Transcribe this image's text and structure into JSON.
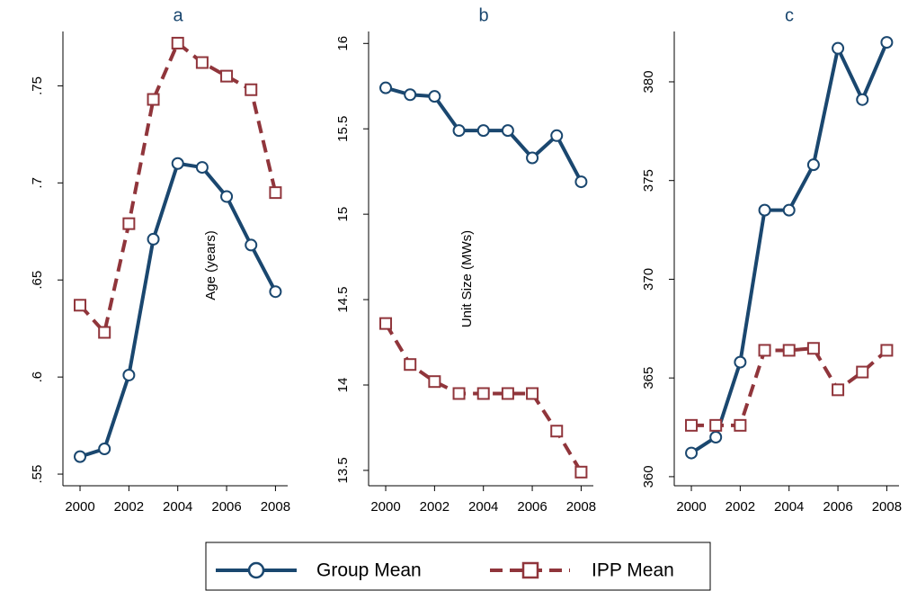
{
  "chart_data": [
    {
      "type": "line",
      "title": "a",
      "ylabel": "Age (years)",
      "x": [
        2000,
        2001,
        2002,
        2003,
        2004,
        2005,
        2006,
        2007,
        2008
      ],
      "xlim": [
        1999.3,
        2008.5
      ],
      "xticks": [
        2000,
        2002,
        2004,
        2006,
        2008
      ],
      "ylim": [
        0.544,
        0.778
      ],
      "yticks": [
        {
          "value": 0.55,
          "label": ".55"
        },
        {
          "value": 0.6,
          "label": ".6"
        },
        {
          "value": 0.65,
          "label": ".65"
        },
        {
          "value": 0.7,
          "label": ".7"
        },
        {
          "value": 0.75,
          "label": ".75"
        }
      ],
      "series": [
        {
          "name": "Group Mean",
          "color": "#1a476f",
          "values": [
            0.559,
            0.563,
            0.601,
            0.671,
            0.71,
            0.708,
            0.693,
            0.668,
            0.644
          ]
        },
        {
          "name": "IPP Mean",
          "color": "#90353b",
          "values": [
            0.637,
            0.623,
            0.679,
            0.743,
            0.772,
            0.762,
            0.755,
            0.748,
            0.695
          ]
        }
      ]
    },
    {
      "type": "line",
      "title": "b",
      "ylabel": "Unit Size (MWs)",
      "x": [
        2000,
        2001,
        2002,
        2003,
        2004,
        2005,
        2006,
        2007,
        2008
      ],
      "xlim": [
        1999.3,
        2008.5
      ],
      "xticks": [
        2000,
        2002,
        2004,
        2006,
        2008
      ],
      "ylim": [
        13.41,
        16.07
      ],
      "yticks": [
        13.5,
        14,
        14.5,
        15,
        15.5,
        16
      ],
      "series": [
        {
          "name": "Group Mean",
          "color": "#1a476f",
          "values": [
            15.74,
            15.7,
            15.69,
            15.49,
            15.49,
            15.49,
            15.33,
            15.46,
            15.19
          ]
        },
        {
          "name": "IPP Mean",
          "color": "#90353b",
          "values": [
            14.36,
            14.12,
            14.02,
            13.95,
            13.95,
            13.95,
            13.95,
            13.73,
            13.49
          ]
        }
      ]
    },
    {
      "type": "line",
      "title": "c",
      "x": [
        2000,
        2001,
        2002,
        2003,
        2004,
        2005,
        2006,
        2007,
        2008
      ],
      "xlim": [
        1999.3,
        2008.5
      ],
      "xticks": [
        2000,
        2002,
        2004,
        2006,
        2008
      ],
      "ylim": [
        359.54,
        382.55
      ],
      "yticks": [
        360,
        365,
        370,
        375,
        380
      ],
      "series": [
        {
          "name": "Group Mean",
          "color": "#1a476f",
          "values": [
            361.2,
            362.0,
            365.8,
            373.5,
            373.5,
            375.8,
            381.7,
            379.1,
            382.0
          ]
        },
        {
          "name": "IPP Mean",
          "color": "#90353b",
          "values": [
            362.6,
            362.6,
            362.6,
            366.4,
            366.4,
            366.5,
            364.4,
            365.3,
            366.4
          ]
        }
      ]
    }
  ]
}
